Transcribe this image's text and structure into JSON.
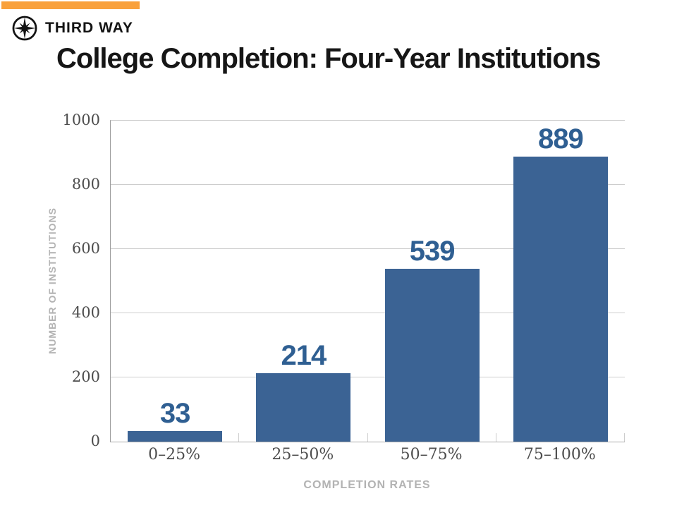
{
  "header": {
    "brand": "THIRD WAY",
    "accent_color": "#F9A13C",
    "logo": "compass-star-icon",
    "logo_color": "#131313"
  },
  "title": "College Completion: Four-Year Institutions",
  "chart_data": {
    "type": "bar",
    "title": "College Completion: Four-Year Institutions",
    "categories": [
      "0–25%",
      "25–50%",
      "50–75%",
      "75–100%"
    ],
    "values": [
      33,
      214,
      539,
      889
    ],
    "xlabel": "COMPLETION RATES",
    "ylabel": "NUMBER OF INSTITUTIONS",
    "ylim": [
      0,
      1000
    ],
    "yticks": [
      0,
      200,
      400,
      600,
      800,
      1000
    ],
    "grid": true,
    "legend": false,
    "value_labels_shown": true,
    "colors": {
      "bar": "#3B6394",
      "value_label": "#2F5F92",
      "tick_label": "#4D4D4D",
      "axis_title": "#B3B3B3",
      "gridline": "#CDCDCD",
      "axis_line": "#9E9E9E"
    }
  }
}
